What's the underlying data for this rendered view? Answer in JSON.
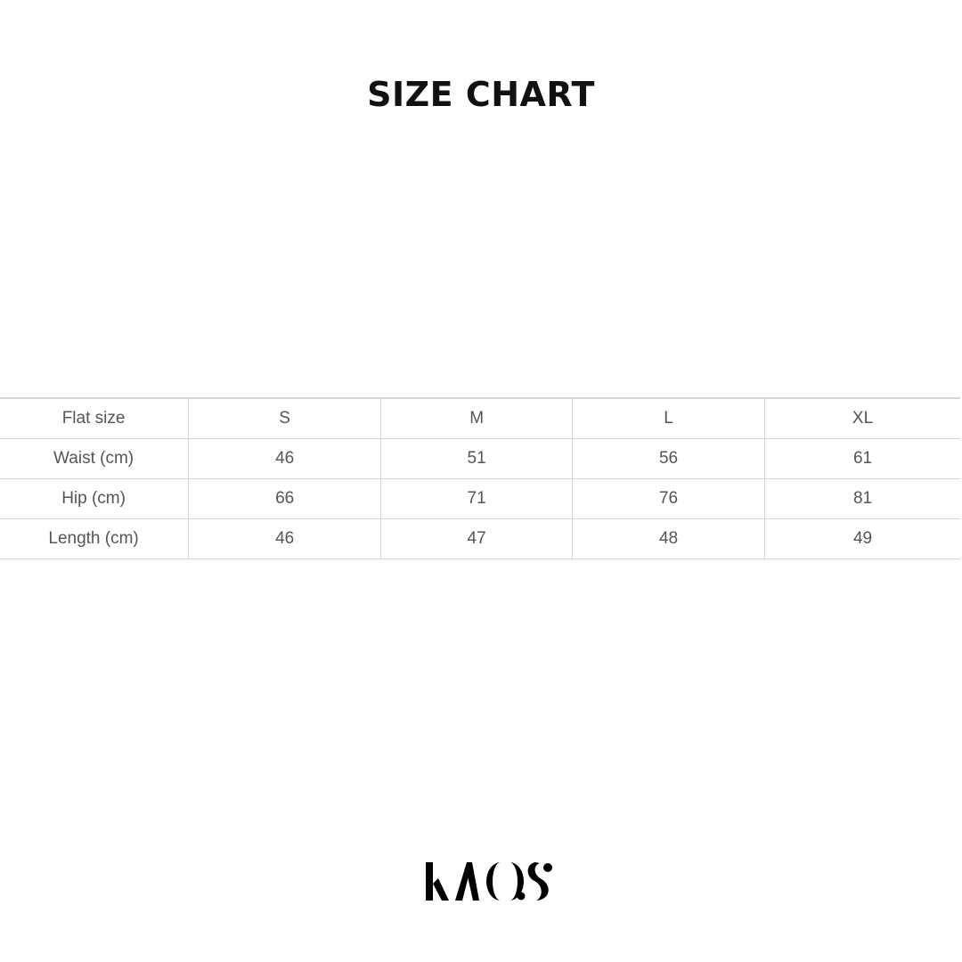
{
  "title": "SIZE CHART",
  "table": {
    "rows": [
      [
        "Flat size",
        "S",
        "M",
        "L",
        "XL"
      ],
      [
        "Waist (cm)",
        "46",
        "51",
        "56",
        "61"
      ],
      [
        "Hip (cm)",
        "66",
        "71",
        "76",
        "81"
      ],
      [
        "Length (cm)",
        "46",
        "47",
        "48",
        "49"
      ]
    ]
  },
  "logo": {
    "text": "KAOS"
  }
}
